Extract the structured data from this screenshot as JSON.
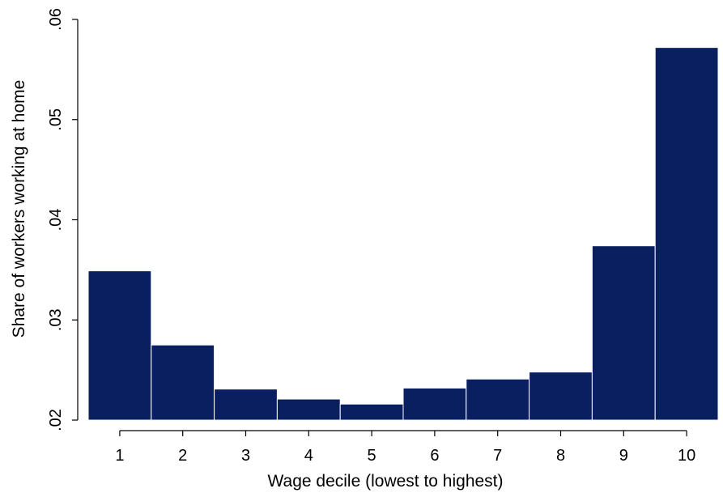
{
  "colors": {
    "bar_fill": "#0a1f5f",
    "bar_edge": "#ffffff",
    "axis": "#000000",
    "background": "#ffffff"
  },
  "chart_data": {
    "type": "bar",
    "xlabel": "Wage decile (lowest to highest)",
    "ylabel": "Share of workers working at home",
    "categories": [
      "1",
      "2",
      "3",
      "4",
      "5",
      "6",
      "7",
      "8",
      "9",
      "10"
    ],
    "values": [
      0.0349,
      0.0275,
      0.0231,
      0.0221,
      0.0216,
      0.0232,
      0.0241,
      0.0248,
      0.0374,
      0.0572
    ],
    "bar_base": 0.02,
    "ylim": [
      0.02,
      0.06
    ],
    "yticks": [
      0.02,
      0.03,
      0.04,
      0.05,
      0.06
    ],
    "ytick_labels": [
      ".02",
      ".03",
      ".04",
      ".05",
      ".06"
    ],
    "grid": false,
    "legend": "none"
  }
}
